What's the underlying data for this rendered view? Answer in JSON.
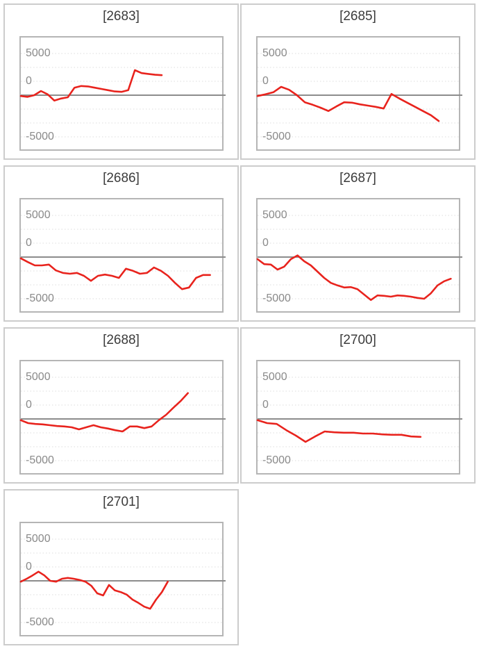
{
  "page": {
    "background": "#ffffff"
  },
  "style": {
    "accent_red": "#e8231d",
    "panel_border_color": "#cccccc",
    "plot_border_color": "#b5b5b5",
    "grid_color": "#dcdcdc",
    "zero_line_color": "#8c8c8c",
    "tick_label_color": "#8a8a8a",
    "title_color": "#3b3b3b"
  },
  "axis": {
    "ticks": [
      "5000",
      "0",
      "-5000"
    ],
    "ymax": 5000,
    "ymin": -5000,
    "gridlines": [
      5000,
      3333,
      1667,
      0,
      -1667,
      -3333,
      -5000
    ],
    "grid_style": "dotted",
    "zero_line": "solid"
  },
  "chart_data": [
    {
      "type": "line",
      "title": "[2683]",
      "legend": "none",
      "ylim": [
        -5000,
        5000
      ],
      "end_x": 0.7,
      "values": [
        -100,
        -200,
        0,
        500,
        100,
        -650,
        -400,
        -250,
        900,
        1100,
        1050,
        900,
        750,
        600,
        450,
        400,
        600,
        3000,
        2650,
        2550,
        2450,
        2400
      ]
    },
    {
      "type": "line",
      "title": "[2685]",
      "legend": "none",
      "ylim": [
        -5000,
        5000
      ],
      "end_x": 0.9,
      "values": [
        -100,
        100,
        350,
        1000,
        650,
        0,
        -850,
        -1150,
        -1500,
        -1900,
        -1350,
        -850,
        -900,
        -1100,
        -1250,
        -1400,
        -1600,
        150,
        -400,
        -900,
        -1400,
        -1900,
        -2400,
        -3100
      ]
    },
    {
      "type": "line",
      "title": "[2686]",
      "legend": "none",
      "ylim": [
        -5000,
        5000
      ],
      "end_x": 0.94,
      "values": [
        -150,
        -600,
        -1000,
        -1000,
        -900,
        -1600,
        -1900,
        -2000,
        -1900,
        -2250,
        -2850,
        -2250,
        -2100,
        -2250,
        -2500,
        -1400,
        -1650,
        -2000,
        -1900,
        -1250,
        -1650,
        -2250,
        -3100,
        -3850,
        -3650,
        -2500,
        -2150,
        -2150
      ]
    },
    {
      "type": "line",
      "title": "[2687]",
      "legend": "none",
      "ylim": [
        -5000,
        5000
      ],
      "end_x": 0.96,
      "values": [
        -250,
        -850,
        -900,
        -1500,
        -1150,
        -250,
        200,
        -500,
        -1000,
        -1750,
        -2500,
        -3100,
        -3400,
        -3650,
        -3600,
        -3850,
        -4500,
        -5150,
        -4600,
        -4650,
        -4750,
        -4600,
        -4650,
        -4750,
        -4900,
        -5000,
        -4350,
        -3400,
        -2900,
        -2600
      ]
    },
    {
      "type": "line",
      "title": "[2688]",
      "legend": "none",
      "ylim": [
        -5000,
        5000
      ],
      "end_x": 0.83,
      "values": [
        -150,
        -500,
        -600,
        -650,
        -750,
        -850,
        -900,
        -1000,
        -1250,
        -1000,
        -750,
        -1000,
        -1150,
        -1350,
        -1500,
        -900,
        -900,
        -1100,
        -900,
        -150,
        500,
        1350,
        2150,
        3100
      ]
    },
    {
      "type": "line",
      "title": "[2700]",
      "legend": "none",
      "ylim": [
        -5000,
        5000
      ],
      "end_x": 0.81,
      "values": [
        -150,
        -500,
        -600,
        -1350,
        -2000,
        -2750,
        -2100,
        -1500,
        -1600,
        -1650,
        -1650,
        -1750,
        -1750,
        -1850,
        -1900,
        -1900,
        -2100,
        -2150
      ]
    },
    {
      "type": "line",
      "title": "[2701]",
      "legend": "none",
      "ylim": [
        -5000,
        5000
      ],
      "end_x": 0.73,
      "values": [
        -100,
        250,
        650,
        1100,
        650,
        0,
        -100,
        250,
        350,
        250,
        100,
        -100,
        -600,
        -1500,
        -1750,
        -500,
        -1150,
        -1350,
        -1650,
        -2250,
        -2650,
        -3100,
        -3350,
        -2250,
        -1350,
        -100
      ]
    }
  ]
}
